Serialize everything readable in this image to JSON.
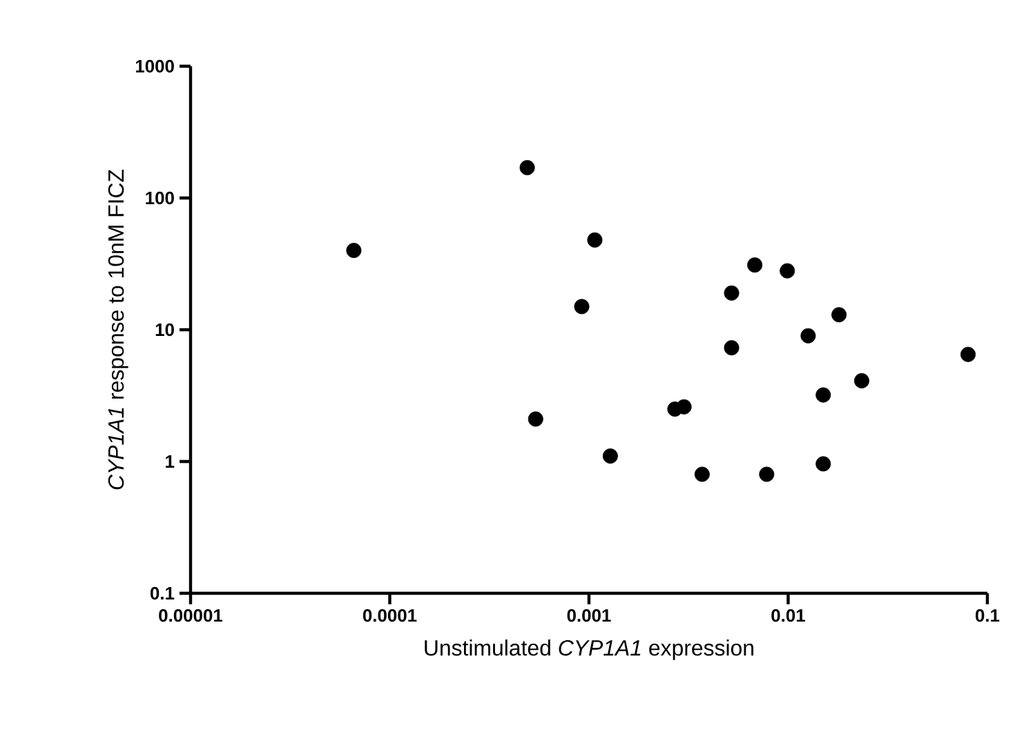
{
  "chart_data": {
    "type": "scatter",
    "xlabel": "Unstimulated *CYP1A1* expression",
    "ylabel": "*CYP1A1* response to 10nM FICZ",
    "log": "xy",
    "marker": "circle",
    "xlim": [
      1e-05,
      0.1
    ],
    "ylim": [
      0.1,
      1000
    ],
    "xticks": [
      {
        "value": 1e-05,
        "label": "0.00001"
      },
      {
        "value": 0.0001,
        "label": "0.0001"
      },
      {
        "value": 0.001,
        "label": "0.001"
      },
      {
        "value": 0.01,
        "label": "0.01"
      },
      {
        "value": 0.1,
        "label": "0.1"
      }
    ],
    "yticks": [
      0.1,
      1,
      10,
      100,
      1000
    ],
    "series": [
      {
        "color": "#000000",
        "x": [
          6.6e-05,
          0.00049,
          0.00107,
          0.00092,
          0.00054,
          0.00128,
          0.0027,
          0.003,
          0.0037,
          0.0052,
          0.0052,
          0.0068,
          0.0078,
          0.0099,
          0.0126,
          0.018,
          0.015,
          0.015,
          0.0234,
          0.08
        ],
        "values": [
          40,
          170,
          48,
          15,
          2.1,
          1.1,
          2.5,
          2.6,
          0.8,
          19,
          7.3,
          31,
          0.8,
          28,
          9,
          13,
          3.2,
          0.96,
          4.1,
          6.5
        ]
      }
    ]
  }
}
